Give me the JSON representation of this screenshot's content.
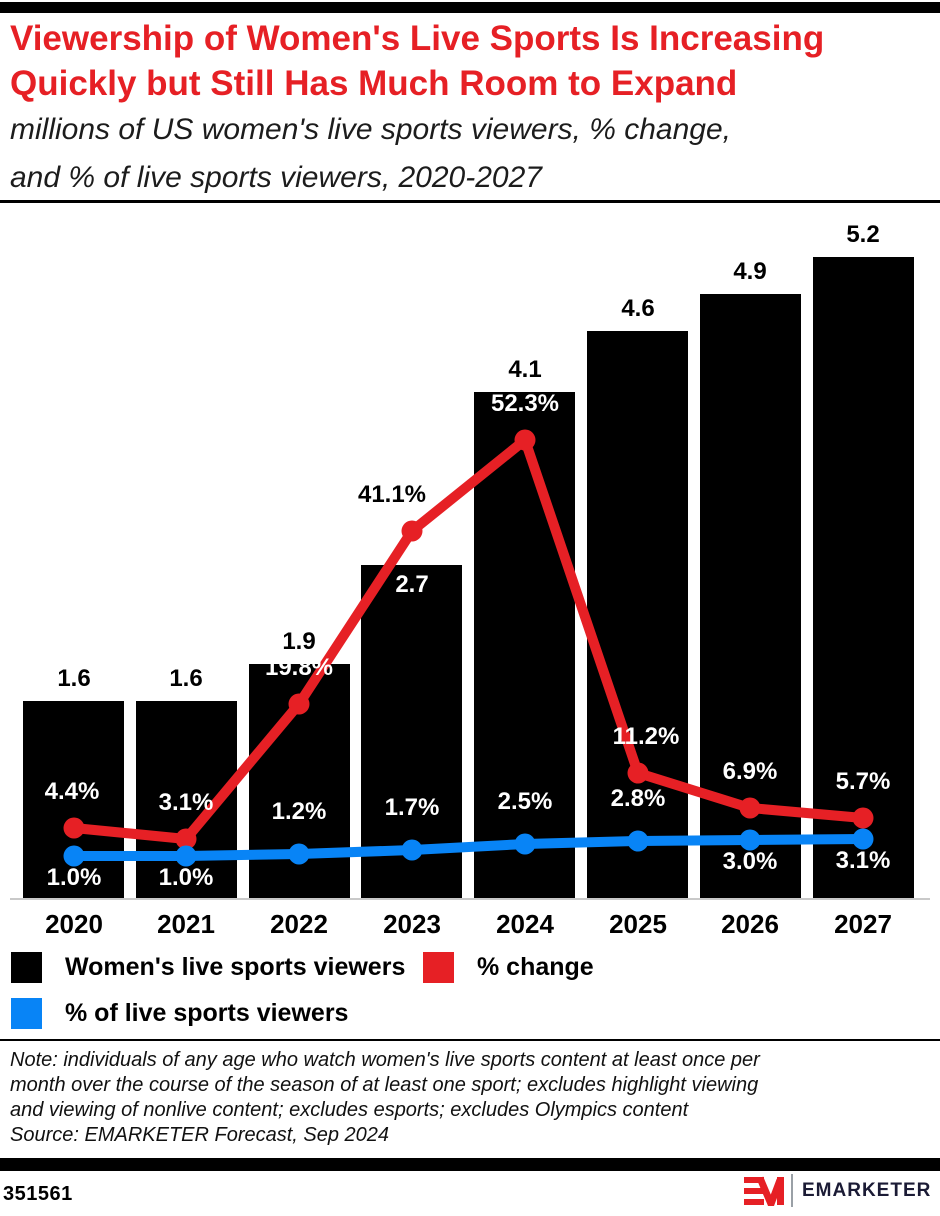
{
  "header": {
    "title_lines": [
      "Viewership of Women's Live Sports Is Increasing",
      "Quickly but Still Has Much Room to Expand"
    ],
    "subtitle_lines": [
      "millions of US women's live sports viewers, % change,",
      "and % of live sports viewers, 2020-2027"
    ]
  },
  "chart_data": {
    "type": "bar",
    "title": "Viewership of Women's Live Sports Is Increasing Quickly but Still Has Much Room to Expand",
    "subtitle": "millions of US women's live sports viewers, % change, and % of live sports viewers, 2020-2027",
    "categories": [
      "2020",
      "2021",
      "2022",
      "2023",
      "2024",
      "2025",
      "2026",
      "2027"
    ],
    "legend_position": "bottom",
    "grid": false,
    "series": [
      {
        "name": "Women's live sports viewers",
        "type": "bar",
        "color": "#000000",
        "values": [
          1.6,
          1.6,
          1.9,
          2.7,
          4.1,
          4.6,
          4.9,
          5.2
        ],
        "value_labels": [
          "1.6",
          "1.6",
          "1.9",
          "2.7",
          "4.1",
          "4.6",
          "4.9",
          "5.2"
        ],
        "label_inside": [
          false,
          false,
          false,
          true,
          false,
          false,
          false,
          false
        ]
      },
      {
        "name": "% change",
        "type": "line",
        "color": "#e62025",
        "values": [
          4.4,
          3.1,
          19.8,
          41.1,
          52.3,
          11.2,
          6.9,
          5.7
        ],
        "point_labels": [
          "4.4%",
          "3.1%",
          "19.8%",
          "41.1%",
          "52.3%",
          "11.2%",
          "6.9%",
          "5.7%"
        ],
        "label_colors": [
          "#ffffff",
          "#ffffff",
          "#ffffff",
          "#000000",
          "#ffffff",
          "#ffffff",
          "#ffffff",
          "#ffffff"
        ],
        "label_dx": [
          -2,
          0,
          0,
          -20,
          0,
          8,
          0,
          0
        ],
        "label_pos": [
          "above",
          "above",
          "above",
          "above",
          "above",
          "above",
          "above",
          "above"
        ]
      },
      {
        "name": "% of live sports viewers",
        "type": "line",
        "color": "#0884f6",
        "values": [
          1.0,
          1.0,
          1.2,
          1.7,
          2.5,
          2.8,
          3.0,
          3.1
        ],
        "point_labels": [
          "1.0%",
          "1.0%",
          "1.2%",
          "1.7%",
          "2.5%",
          "2.8%",
          "3.0%",
          "3.1%"
        ],
        "label_colors": [
          "#ffffff",
          "#ffffff",
          "#ffffff",
          "#ffffff",
          "#ffffff",
          "#ffffff",
          "#ffffff",
          "#ffffff"
        ],
        "label_dx": [
          0,
          0,
          0,
          0,
          0,
          0,
          0,
          0
        ],
        "label_pos": [
          "below",
          "below",
          "above",
          "above",
          "above",
          "above",
          "below",
          "below"
        ]
      }
    ]
  },
  "note": {
    "lines": [
      "Note: individuals of any age who watch women's live sports content at least once per",
      "month over the course of the season of at least one sport; excludes highlight viewing",
      "and viewing of nonlive content; excludes esports; excludes Olympics content"
    ],
    "source": "Source: EMARKETER Forecast, Sep 2024"
  },
  "footer": {
    "chart_id": "351561",
    "brand": "EMARKETER"
  },
  "colors": {
    "brand_red": "#e62025",
    "line_blue": "#0884f6",
    "bar_black": "#000000",
    "logo_navy": "#1b1b35",
    "axis_gray": "#c9c9c9"
  }
}
